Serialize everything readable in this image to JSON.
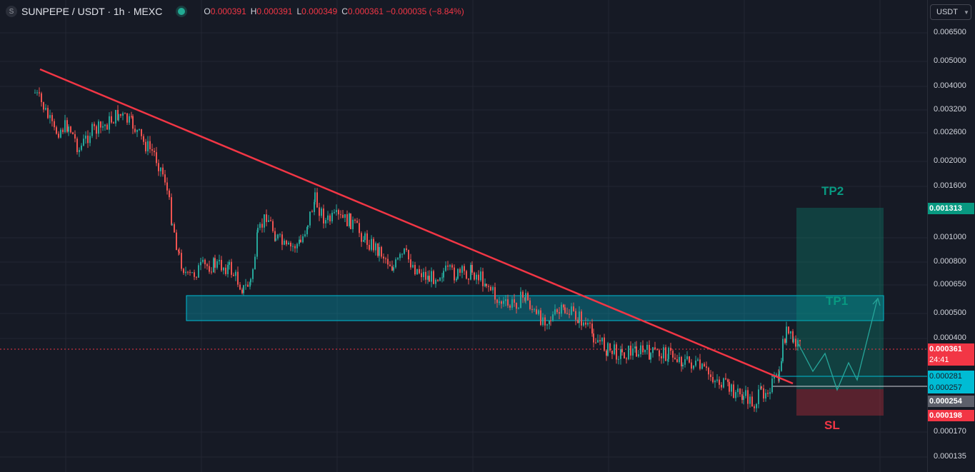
{
  "header": {
    "symbol_icon": "S",
    "title": "SUNPEPE / USDT · 1h · MEXC",
    "ohlc": [
      {
        "key": "O",
        "value": "0.000391"
      },
      {
        "key": "H",
        "value": "0.000391"
      },
      {
        "key": "L",
        "value": "0.000349"
      },
      {
        "key": "C",
        "value": "0.000361 −0.000035 (−8.84%)"
      }
    ]
  },
  "currency_selector": {
    "value": "USDT"
  },
  "price_axis": {
    "ticks": [
      "0.006500",
      "0.005000",
      "0.004000",
      "0.003200",
      "0.002600",
      "0.002000",
      "0.001600",
      "0.001000",
      "0.000800",
      "0.000650",
      "0.000500",
      "0.000400",
      "0.000170",
      "0.000135"
    ],
    "tags": {
      "tp2": "0.001313",
      "current": "0.000361",
      "countdown": "24:41",
      "entry_top": "0.000281",
      "entry_bottom": "0.000257",
      "low": "0.000254",
      "sl": "0.000198"
    }
  },
  "annotations": {
    "tp2": "TP2",
    "tp1": "TP1",
    "sl": "SL"
  },
  "colors": {
    "up": "#26a69a",
    "down": "#ef5350",
    "trendline": "#f23645",
    "zone": "#00bcd4",
    "tp_green": "#089981",
    "sl_red": "#f23645"
  }
}
